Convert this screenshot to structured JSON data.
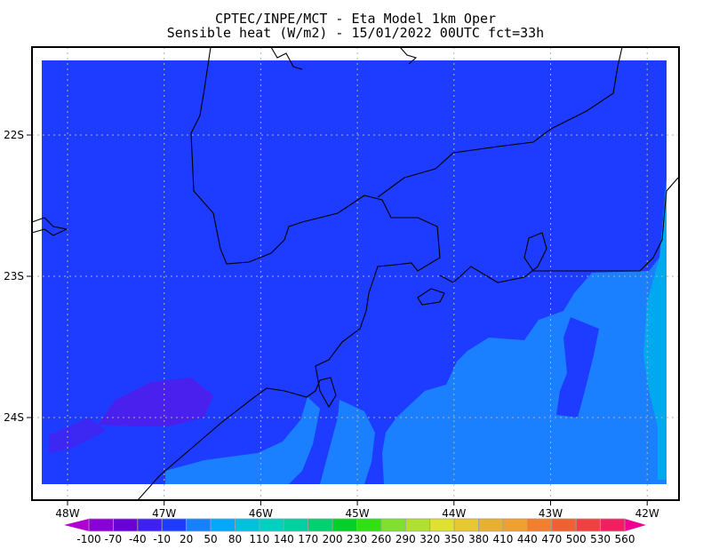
{
  "title": {
    "line1": "CPTEC/INPE/MCT -  Eta Model 1km Oper",
    "line2": "Sensible heat (W/m2) - 15/01/2022 00UTC fct=33h"
  },
  "map": {
    "variable": "Sensible heat",
    "units": "W/m2",
    "lon_ticks": [
      "48W",
      "47W",
      "46W",
      "45W",
      "44W",
      "43W",
      "42W"
    ],
    "lat_ticks": [
      "22S",
      "23S",
      "24S"
    ],
    "extent": {
      "lon": [
        -48.3,
        -41.7
      ],
      "lat": [
        -24.6,
        -21.4
      ]
    },
    "grid": true,
    "field_colors": {
      "dominant": "#1e3cff",
      "offshore": "#1a80ff",
      "far_offshore": "#00a8f0",
      "patches": "#4a20ee"
    }
  },
  "colorbar": {
    "labels": [
      "-100",
      "-70",
      "-40",
      "-10",
      "20",
      "50",
      "80",
      "110",
      "140",
      "170",
      "200",
      "230",
      "260",
      "290",
      "320",
      "350",
      "380",
      "410",
      "440",
      "470",
      "500",
      "530",
      "560"
    ],
    "colors": [
      "#8a00d8",
      "#6a00d8",
      "#4020f0",
      "#1e3cff",
      "#1880ff",
      "#00a8ff",
      "#00c0e0",
      "#00d0c0",
      "#00d0a0",
      "#00d070",
      "#00d028",
      "#30e010",
      "#80e030",
      "#b0e030",
      "#e0e030",
      "#e8c830",
      "#e8b030",
      "#f0a030",
      "#f08030",
      "#f06030",
      "#f04040",
      "#f02060"
    ],
    "under_color": "#b000d0",
    "over_color": "#f00090"
  }
}
